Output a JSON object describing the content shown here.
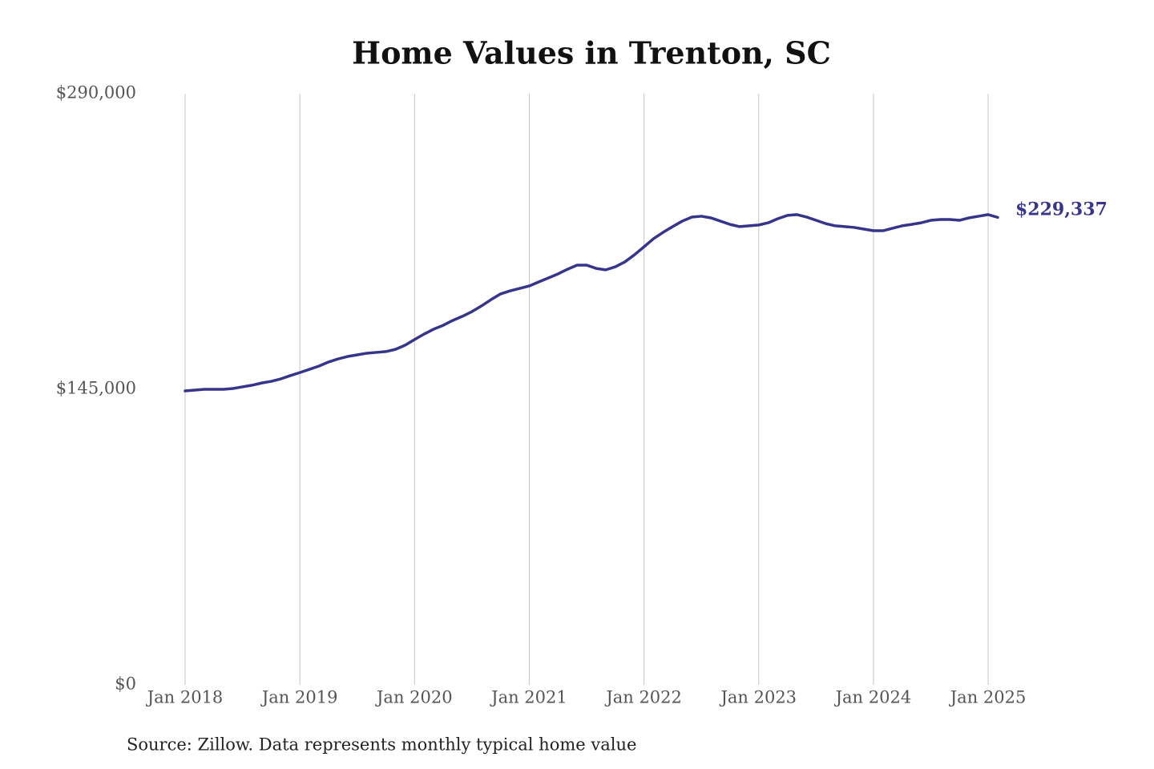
{
  "chart_data": {
    "type": "line",
    "title": "Home Values in Trenton, SC",
    "source": "Source: Zillow. Data represents monthly typical home value",
    "x": [
      "2018-01",
      "2018-02",
      "2018-03",
      "2018-04",
      "2018-05",
      "2018-06",
      "2018-07",
      "2018-08",
      "2018-09",
      "2018-10",
      "2018-11",
      "2018-12",
      "2019-01",
      "2019-02",
      "2019-03",
      "2019-04",
      "2019-05",
      "2019-06",
      "2019-07",
      "2019-08",
      "2019-09",
      "2019-10",
      "2019-11",
      "2019-12",
      "2020-01",
      "2020-02",
      "2020-03",
      "2020-04",
      "2020-05",
      "2020-06",
      "2020-07",
      "2020-08",
      "2020-09",
      "2020-10",
      "2020-11",
      "2020-12",
      "2021-01",
      "2021-02",
      "2021-03",
      "2021-04",
      "2021-05",
      "2021-06",
      "2021-07",
      "2021-08",
      "2021-09",
      "2021-10",
      "2021-11",
      "2021-12",
      "2022-01",
      "2022-02",
      "2022-03",
      "2022-04",
      "2022-05",
      "2022-06",
      "2022-07",
      "2022-08",
      "2022-09",
      "2022-10",
      "2022-11",
      "2022-12",
      "2023-01",
      "2023-02",
      "2023-03",
      "2023-04",
      "2023-05",
      "2023-06",
      "2023-07",
      "2023-08",
      "2023-09",
      "2023-10",
      "2023-11",
      "2023-12",
      "2024-01",
      "2024-02",
      "2024-03",
      "2024-04",
      "2024-05",
      "2024-06",
      "2024-07",
      "2024-08",
      "2024-09",
      "2024-10",
      "2024-11",
      "2024-12",
      "2025-01",
      "2025-02"
    ],
    "series": [
      {
        "name": "Home value",
        "color": "#37348b",
        "values": [
          144200,
          144600,
          145000,
          145000,
          145000,
          145400,
          146200,
          147000,
          148100,
          148900,
          150100,
          151700,
          153200,
          154800,
          156400,
          158400,
          159900,
          161100,
          161900,
          162700,
          163100,
          163500,
          164600,
          166600,
          169400,
          172100,
          174500,
          176400,
          178800,
          180800,
          183100,
          185900,
          189000,
          191800,
          193300,
          194500,
          195700,
          197700,
          199600,
          201600,
          203900,
          205900,
          205900,
          204300,
          203600,
          205100,
          207500,
          211000,
          214900,
          218900,
          222000,
          224800,
          227500,
          229500,
          229900,
          229100,
          227500,
          225900,
          224800,
          225200,
          225600,
          226700,
          228700,
          230300,
          230700,
          229500,
          227900,
          226300,
          225200,
          224800,
          224400,
          223600,
          222800,
          222800,
          224000,
          225200,
          225900,
          226700,
          227900,
          228300,
          228300,
          227900,
          229100,
          229900,
          230700,
          229337
        ],
        "value_labels": [
          null,
          null,
          null,
          null,
          null,
          null,
          null,
          null,
          null,
          null,
          null,
          null,
          null,
          null,
          null,
          null,
          null,
          null,
          null,
          null,
          null,
          null,
          null,
          null,
          null,
          null,
          null,
          null,
          null,
          null,
          null,
          null,
          null,
          null,
          null,
          null,
          null,
          null,
          null,
          null,
          null,
          null,
          null,
          null,
          null,
          null,
          null,
          null,
          null,
          null,
          null,
          null,
          null,
          null,
          null,
          null,
          null,
          null,
          null,
          null,
          null,
          null,
          null,
          null,
          null,
          null,
          null,
          null,
          null,
          null,
          null,
          null,
          null,
          null,
          null,
          null,
          null,
          null,
          null,
          null,
          null,
          null,
          null,
          null,
          null,
          "$229,337"
        ]
      }
    ],
    "xlim": [
      "2018-01",
      "2025-02"
    ],
    "xticks": [
      {
        "value": "2018-01",
        "label": "Jan 2018"
      },
      {
        "value": "2019-01",
        "label": "Jan 2019"
      },
      {
        "value": "2020-01",
        "label": "Jan 2020"
      },
      {
        "value": "2021-01",
        "label": "Jan 2021"
      },
      {
        "value": "2022-01",
        "label": "Jan 2022"
      },
      {
        "value": "2023-01",
        "label": "Jan 2023"
      },
      {
        "value": "2024-01",
        "label": "Jan 2024"
      },
      {
        "value": "2025-01",
        "label": "Jan 2025"
      }
    ],
    "ylim": [
      0,
      290000
    ],
    "yticks": [
      {
        "value": 0,
        "label": "$0"
      },
      {
        "value": 145000,
        "label": "$145,000"
      },
      {
        "value": 290000,
        "label": "$290,000"
      }
    ],
    "grid": "x"
  }
}
